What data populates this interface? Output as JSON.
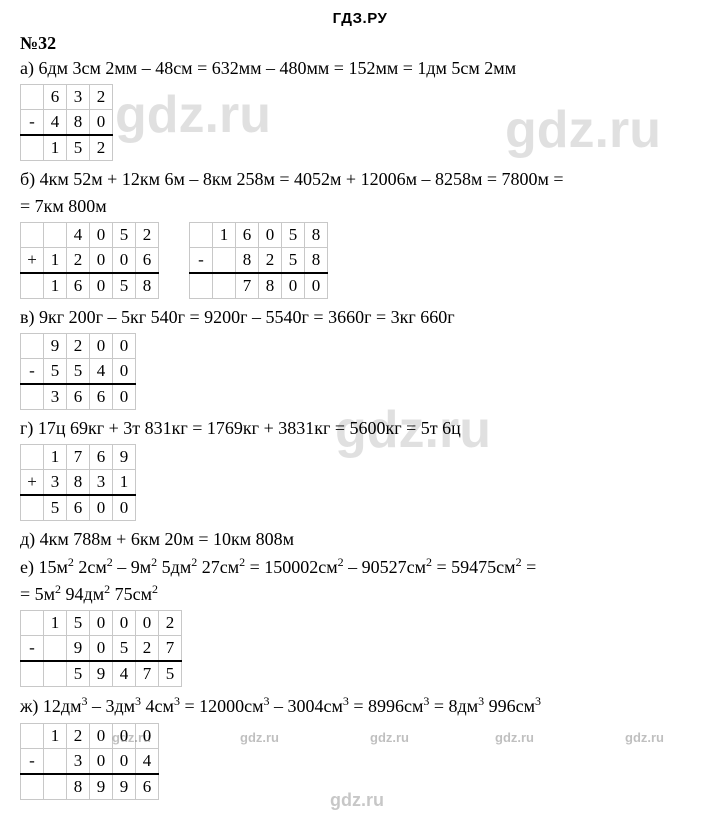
{
  "header": "ГДЗ.РУ",
  "problem_number": "№32",
  "items": {
    "a": {
      "text": "а) 6дм 3см 2мм – 48см = 632мм – 480мм = 152мм = 1дм 5см 2мм",
      "tables": [
        {
          "op": "-",
          "rows": [
            [
              "",
              "6",
              "3",
              "2"
            ],
            [
              "",
              "4",
              "8",
              "0"
            ],
            [
              "",
              "1",
              "5",
              "2"
            ]
          ],
          "hline_before": 2
        }
      ]
    },
    "b": {
      "text1": "б) 4км 52м + 12км 6м – 8км 258м = 4052м + 12006м – 8258м = 7800м =",
      "text2": "= 7км 800м",
      "tables": [
        {
          "op": "+",
          "rows": [
            [
              "",
              "",
              "4",
              "0",
              "5",
              "2"
            ],
            [
              "",
              "1",
              "2",
              "0",
              "0",
              "6"
            ],
            [
              "",
              "1",
              "6",
              "0",
              "5",
              "8"
            ]
          ],
          "hline_before": 2
        },
        {
          "op": "-",
          "rows": [
            [
              "",
              "1",
              "6",
              "0",
              "5",
              "8"
            ],
            [
              "",
              "",
              "8",
              "2",
              "5",
              "8"
            ],
            [
              "",
              "",
              "7",
              "8",
              "0",
              "0"
            ]
          ],
          "hline_before": 2
        }
      ]
    },
    "v": {
      "text": "в) 9кг 200г – 5кг 540г = 9200г – 5540г = 3660г = 3кг 660г",
      "tables": [
        {
          "op": "-",
          "rows": [
            [
              "",
              "9",
              "2",
              "0",
              "0"
            ],
            [
              "",
              "5",
              "5",
              "4",
              "0"
            ],
            [
              "",
              "3",
              "6",
              "6",
              "0"
            ]
          ],
          "hline_before": 2
        }
      ]
    },
    "g": {
      "text": "г) 17ц 69кг + 3т 831кг = 1769кг + 3831кг = 5600кг = 5т 6ц",
      "tables": [
        {
          "op": "+",
          "rows": [
            [
              "",
              "1",
              "7",
              "6",
              "9"
            ],
            [
              "",
              "3",
              "8",
              "3",
              "1"
            ],
            [
              "",
              "5",
              "6",
              "0",
              "0"
            ]
          ],
          "hline_before": 2
        }
      ]
    },
    "d": {
      "text": "д) 4км 788м + 6км 20м = 10км 808м"
    },
    "e": {
      "text1": "е) 15м<sup>2</sup> 2см<sup>2</sup> – 9м<sup>2</sup> 5дм<sup>2</sup> 27см<sup>2</sup> = 150002см<sup>2</sup> – 90527см<sup>2</sup> = 59475см<sup>2</sup> =",
      "text2": "= 5м<sup>2</sup> 94дм<sup>2</sup> 75см<sup>2</sup>",
      "tables": [
        {
          "op": "-",
          "rows": [
            [
              "",
              "1",
              "5",
              "0",
              "0",
              "0",
              "2"
            ],
            [
              "",
              "",
              "9",
              "0",
              "5",
              "2",
              "7"
            ],
            [
              "",
              "",
              "5",
              "9",
              "4",
              "7",
              "5"
            ]
          ],
          "hline_before": 2
        }
      ]
    },
    "zh": {
      "text": "ж) 12дм<sup>3</sup> – 3дм<sup>3</sup> 4см<sup>3</sup> = 12000см<sup>3</sup> – 3004см<sup>3</sup> = 8996см<sup>3</sup> = 8дм<sup>3</sup> 996см<sup>3</sup>",
      "tables": [
        {
          "op": "-",
          "rows": [
            [
              "",
              "1",
              "2",
              "0",
              "0",
              "0"
            ],
            [
              "",
              "",
              "3",
              "0",
              "0",
              "4"
            ],
            [
              "",
              "",
              "8",
              "9",
              "9",
              "6"
            ]
          ],
          "hline_before": 2
        }
      ]
    }
  },
  "watermarks": {
    "big": "gdz.ru",
    "small": "gdz.ru",
    "footer": "gdz.ru"
  }
}
